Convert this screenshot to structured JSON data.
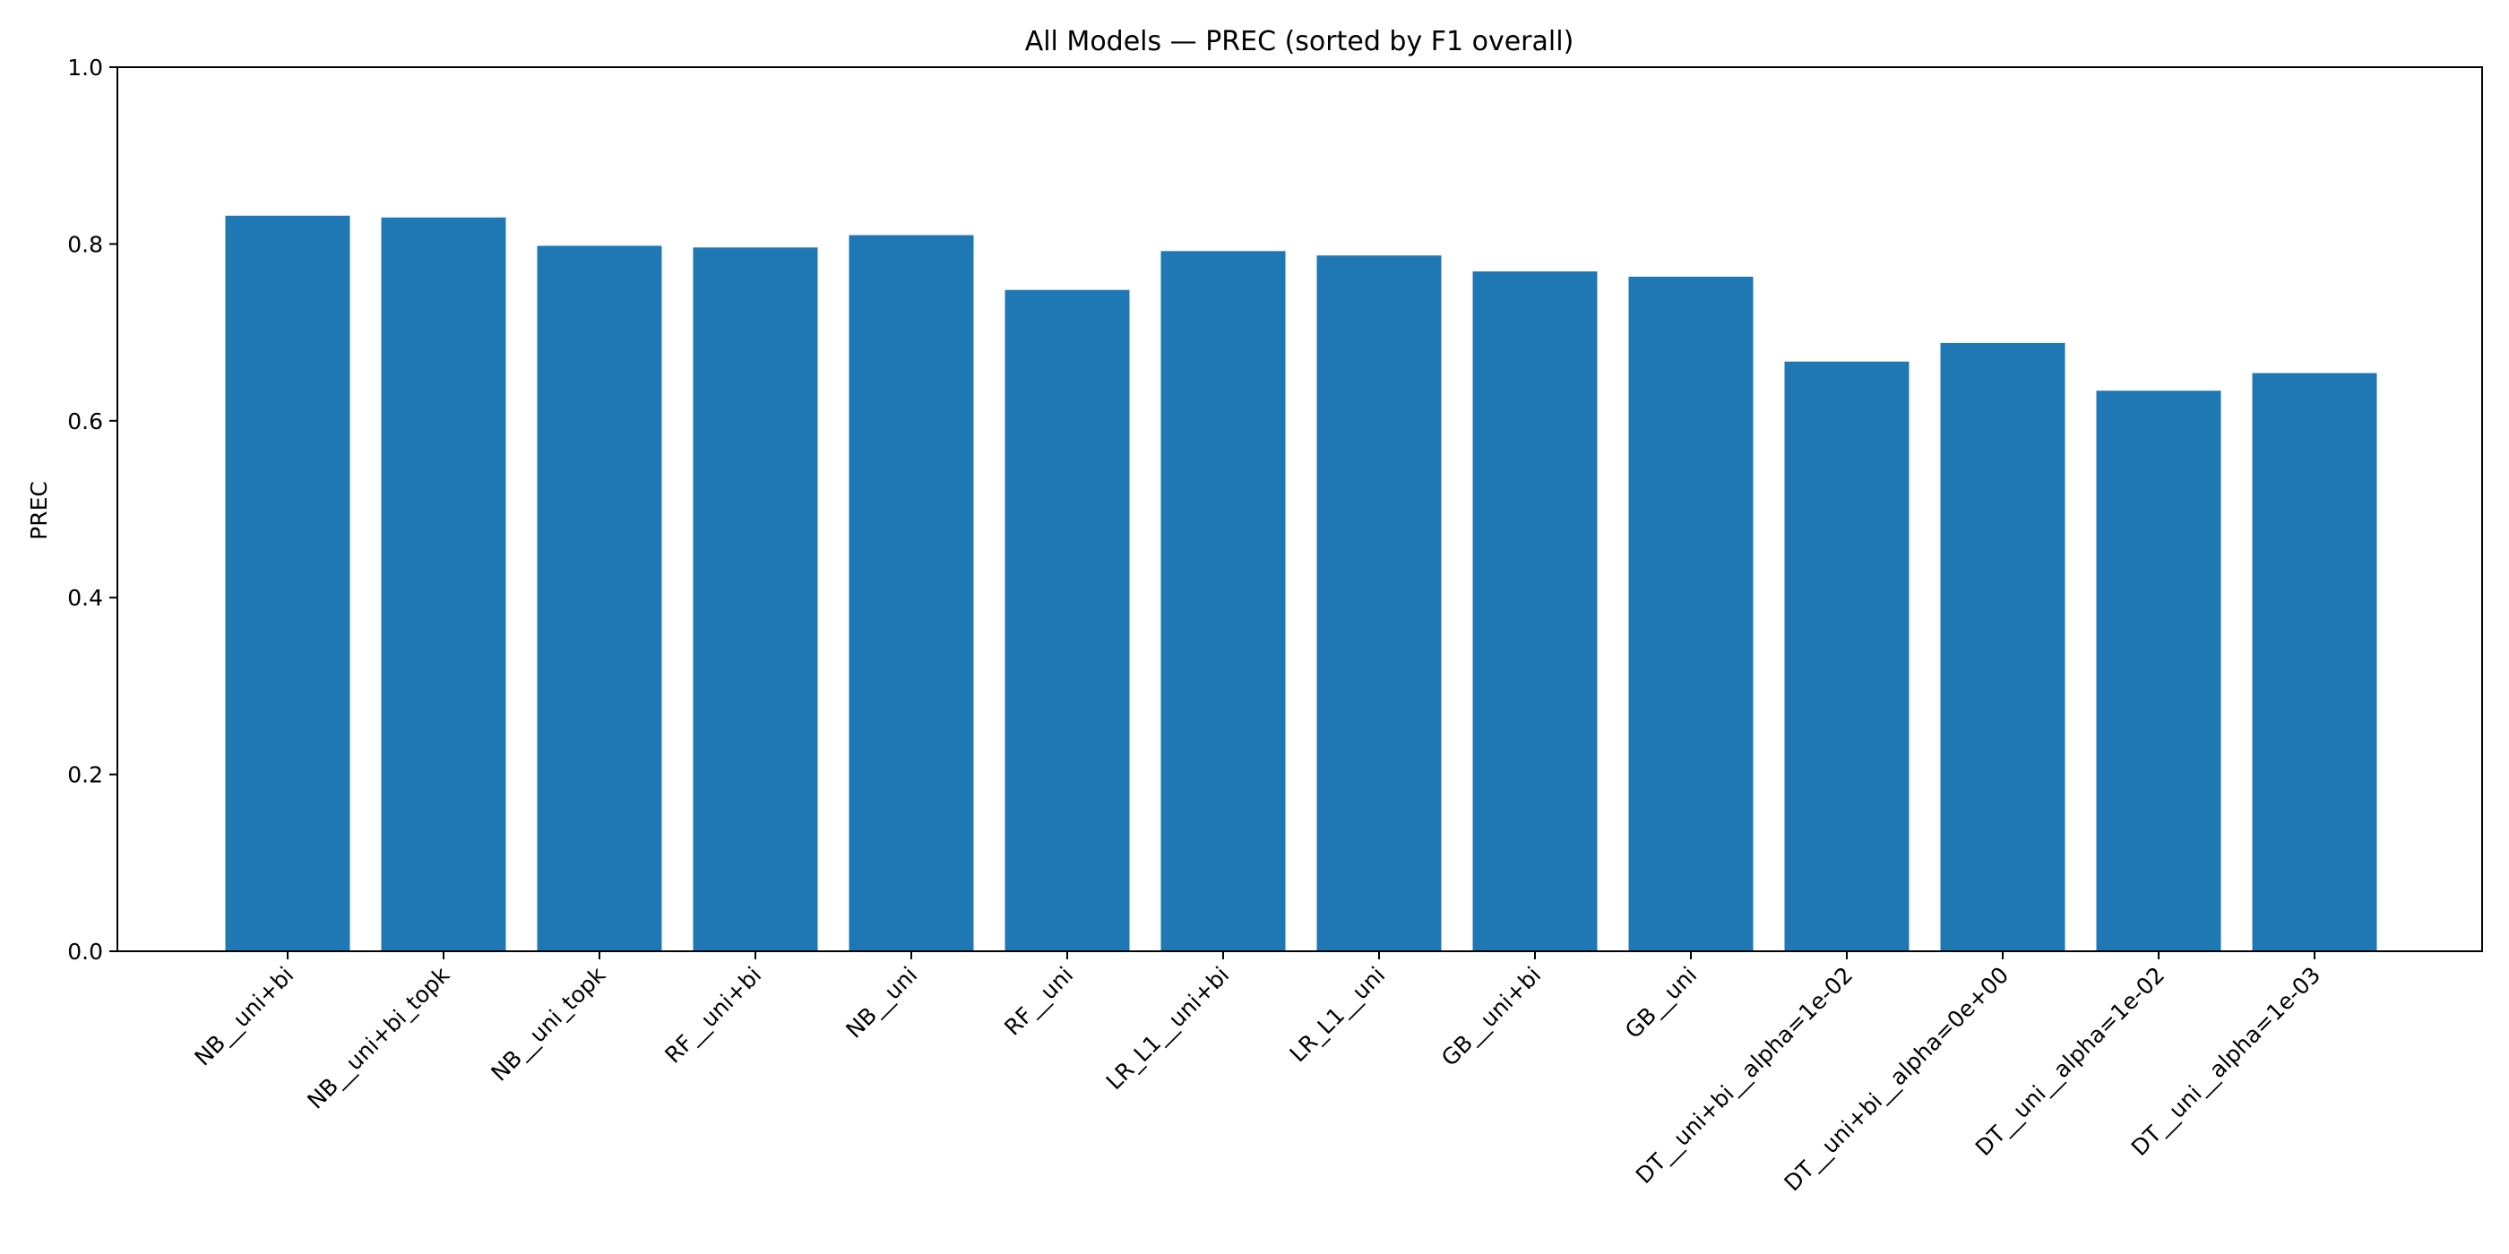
{
  "chart_data": {
    "type": "bar",
    "title": "All Models — PREC (sorted by F1 overall)",
    "xlabel": "",
    "ylabel": "PREC",
    "ylim": [
      0,
      1.0
    ],
    "yticks": [
      "0.0",
      "0.2",
      "0.4",
      "0.6",
      "0.8",
      "1.0"
    ],
    "grid": false,
    "categories": [
      "NB__uni+bi",
      "NB__uni+bi_topk",
      "NB__uni_topk",
      "RF__uni+bi",
      "NB__uni",
      "RF__uni",
      "LR_L1__uni+bi",
      "LR_L1__uni",
      "GB__uni+bi",
      "GB__uni",
      "DT__uni+bi__alpha=1e-02",
      "DT__uni+bi__alpha=0e+00",
      "DT__uni__alpha=1e-02",
      "DT__uni__alpha=1e-03"
    ],
    "values": [
      0.832,
      0.83,
      0.798,
      0.796,
      0.81,
      0.748,
      0.792,
      0.787,
      0.769,
      0.763,
      0.667,
      0.688,
      0.634,
      0.654
    ],
    "color": "#1f77b4"
  }
}
